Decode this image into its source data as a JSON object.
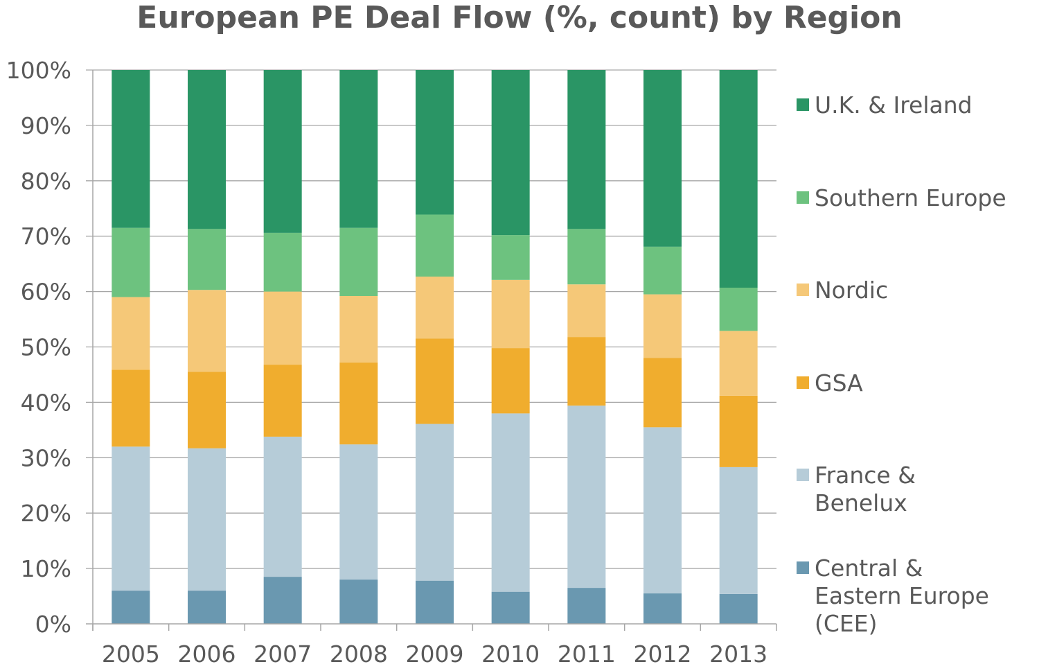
{
  "chart_data": {
    "type": "bar",
    "stacked": true,
    "title": "European PE Deal Flow (%, count) by Region",
    "categories": [
      "2005",
      "2006",
      "2007",
      "2008",
      "2009",
      "2010",
      "2011",
      "2012",
      "2013"
    ],
    "ylim": [
      0,
      100
    ],
    "yticks": [
      "0%",
      "10%",
      "20%",
      "30%",
      "40%",
      "50%",
      "60%",
      "70%",
      "80%",
      "90%",
      "100%"
    ],
    "grid": true,
    "legend_position": "right",
    "series": [
      {
        "name": "Central & Eastern Europe (CEE)",
        "legend_lines": [
          "Central &",
          "Eastern Europe",
          "(CEE)"
        ],
        "color": "#6a98b0",
        "values": [
          6.0,
          6.0,
          8.5,
          8.0,
          7.8,
          5.8,
          6.5,
          5.5,
          5.4
        ]
      },
      {
        "name": "France & Benelux",
        "legend_lines": [
          "France &",
          "Benelux"
        ],
        "color": "#b6ccd8",
        "values": [
          26.0,
          25.7,
          25.3,
          24.4,
          28.3,
          32.2,
          32.9,
          30.0,
          22.9
        ]
      },
      {
        "name": "GSA",
        "legend_lines": [
          "GSA"
        ],
        "color": "#f0ad2e",
        "values": [
          13.9,
          13.8,
          13.0,
          14.8,
          15.4,
          11.8,
          12.4,
          12.5,
          12.9
        ]
      },
      {
        "name": "Nordic",
        "legend_lines": [
          "Nordic"
        ],
        "color": "#f5c878",
        "values": [
          13.1,
          14.8,
          13.2,
          12.0,
          11.2,
          12.3,
          9.5,
          11.5,
          11.7
        ]
      },
      {
        "name": "Southern Europe",
        "legend_lines": [
          "Southern Europe"
        ],
        "color": "#6dc27f",
        "values": [
          12.5,
          11.0,
          10.6,
          12.3,
          11.2,
          8.1,
          10.0,
          8.6,
          7.8
        ]
      },
      {
        "name": "U.K. & Ireland",
        "legend_lines": [
          "U.K. & Ireland"
        ],
        "color": "#2a9565",
        "values": [
          28.5,
          28.7,
          29.4,
          28.5,
          26.1,
          29.8,
          28.7,
          31.9,
          39.3
        ]
      }
    ]
  }
}
